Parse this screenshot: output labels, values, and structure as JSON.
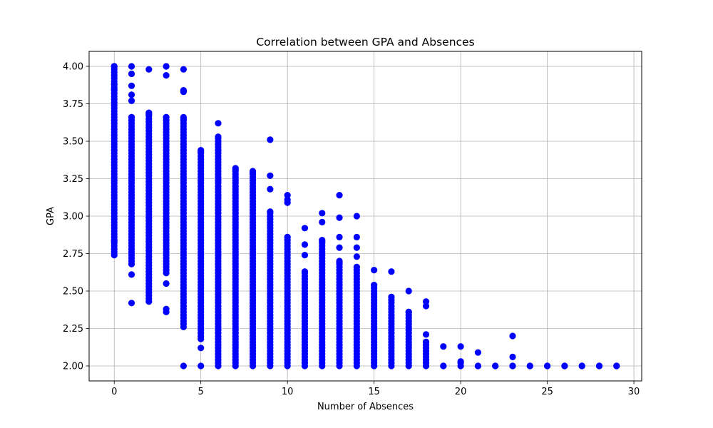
{
  "chart_data": {
    "type": "scatter",
    "title": "Correlation between GPA and Absences",
    "xlabel": "Number of Absences",
    "ylabel": "GPA",
    "xlim": [
      -1.45,
      30.45
    ],
    "ylim": [
      1.9,
      4.1
    ],
    "xticks": [
      0,
      5,
      10,
      15,
      20,
      25,
      30
    ],
    "xtick_labels": [
      "0",
      "5",
      "10",
      "15",
      "20",
      "25",
      "30"
    ],
    "yticks": [
      2.0,
      2.25,
      2.5,
      2.75,
      3.0,
      3.25,
      3.5,
      3.75,
      4.0
    ],
    "ytick_labels": [
      "2.00",
      "2.25",
      "2.50",
      "2.75",
      "3.00",
      "3.25",
      "3.50",
      "3.75",
      "4.00"
    ],
    "grid": true,
    "marker_color": "#0000ff",
    "columns": [
      {
        "x": 0,
        "range": [
          2.74,
          4.0
        ],
        "extra": [
          2.83,
          3.85,
          3.88,
          4.0
        ]
      },
      {
        "x": 1,
        "range": [
          2.68,
          3.66
        ],
        "extra": [
          2.42,
          2.61,
          3.77,
          3.81,
          3.87,
          3.95,
          4.0
        ]
      },
      {
        "x": 2,
        "range": [
          2.43,
          3.68
        ],
        "extra": [
          3.98
        ]
      },
      {
        "x": 3,
        "range": [
          2.62,
          3.66
        ],
        "extra": [
          2.36,
          2.38,
          2.55,
          3.94,
          4.0
        ]
      },
      {
        "x": 4,
        "range": [
          2.26,
          3.65
        ],
        "extra": [
          2.0,
          3.83,
          3.84,
          3.98
        ]
      },
      {
        "x": 5,
        "range": [
          2.18,
          3.43
        ],
        "extra": [
          2.0,
          2.12
        ]
      },
      {
        "x": 6,
        "range": [
          2.0,
          3.53
        ],
        "extra": [
          3.62
        ]
      },
      {
        "x": 7,
        "range": [
          2.0,
          3.31
        ],
        "extra": []
      },
      {
        "x": 8,
        "range": [
          2.0,
          3.29
        ],
        "extra": []
      },
      {
        "x": 9,
        "range": [
          2.0,
          3.03
        ],
        "extra": [
          3.18,
          3.27,
          3.51
        ]
      },
      {
        "x": 10,
        "range": [
          2.0,
          2.86
        ],
        "extra": [
          3.09,
          3.11,
          3.14
        ]
      },
      {
        "x": 11,
        "range": [
          2.0,
          2.63
        ],
        "extra": [
          2.74,
          2.81,
          2.92
        ]
      },
      {
        "x": 12,
        "range": [
          2.0,
          2.83
        ],
        "extra": [
          2.96,
          3.02
        ]
      },
      {
        "x": 13,
        "range": [
          2.0,
          2.69
        ],
        "extra": [
          2.79,
          2.86,
          2.99,
          3.14
        ]
      },
      {
        "x": 14,
        "range": [
          2.0,
          2.66
        ],
        "extra": [
          2.73,
          2.79,
          2.86,
          3.0
        ]
      },
      {
        "x": 15,
        "range": [
          2.0,
          2.54
        ],
        "extra": [
          2.64
        ]
      },
      {
        "x": 16,
        "range": [
          2.0,
          2.46
        ],
        "extra": [
          2.63
        ]
      },
      {
        "x": 17,
        "range": [
          2.0,
          2.36
        ],
        "extra": [
          2.5
        ]
      },
      {
        "x": 18,
        "range": [
          2.0,
          2.16
        ],
        "extra": [
          2.21,
          2.4,
          2.43
        ]
      },
      {
        "x": 19,
        "range": [
          2.0,
          2.0
        ],
        "extra": [
          2.13
        ]
      },
      {
        "x": 20,
        "range": [
          2.0,
          2.03
        ],
        "extra": [
          2.13
        ]
      },
      {
        "x": 21,
        "range": [
          2.0,
          2.0
        ],
        "extra": [
          2.09
        ]
      },
      {
        "x": 22,
        "range": [
          2.0,
          2.0
        ],
        "extra": []
      },
      {
        "x": 23,
        "range": [
          2.0,
          2.0
        ],
        "extra": [
          2.06,
          2.2
        ]
      },
      {
        "x": 24,
        "range": [
          2.0,
          2.0
        ],
        "extra": []
      },
      {
        "x": 25,
        "range": [
          2.0,
          2.0
        ],
        "extra": []
      },
      {
        "x": 26,
        "range": [
          2.0,
          2.0
        ],
        "extra": []
      },
      {
        "x": 27,
        "range": [
          2.0,
          2.0
        ],
        "extra": []
      },
      {
        "x": 28,
        "range": [
          2.0,
          2.0
        ],
        "extra": []
      },
      {
        "x": 29,
        "range": [
          2.0,
          2.0
        ],
        "extra": []
      }
    ]
  }
}
